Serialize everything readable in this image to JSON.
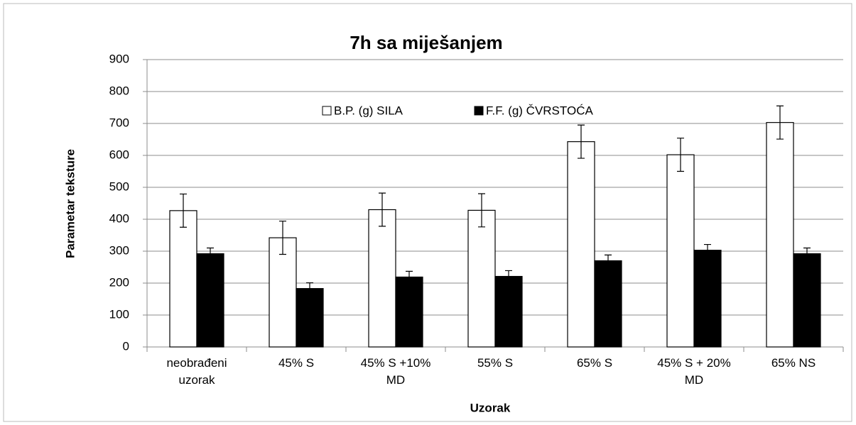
{
  "chart_data": {
    "type": "bar",
    "title": "7h sa miješanjem",
    "x_label": "Uzorak",
    "y_label": "Parametar teksture",
    "categories": [
      "neobrađeni uzorak",
      "45% S",
      "45% S +10% MD",
      "55% S",
      "65% S",
      "45% S + 20% MD",
      "65% NS"
    ],
    "series": [
      {
        "name": "B.P. (g) SILA",
        "color": "#ffffff",
        "values": [
          427,
          342,
          430,
          428,
          643,
          602,
          703
        ],
        "errors": [
          52,
          52,
          52,
          52,
          52,
          52,
          52
        ]
      },
      {
        "name": "F.F. (g) ČVRSTOĆA",
        "color": "#000000",
        "values": [
          292,
          183,
          219,
          221,
          270,
          303,
          292
        ],
        "errors": [
          18,
          18,
          18,
          18,
          18,
          18,
          18
        ]
      }
    ],
    "ylim": [
      0,
      900
    ],
    "yticks": [
      0,
      100,
      200,
      300,
      400,
      500,
      600,
      700,
      800,
      900
    ],
    "grid": true,
    "legend": "top"
  }
}
